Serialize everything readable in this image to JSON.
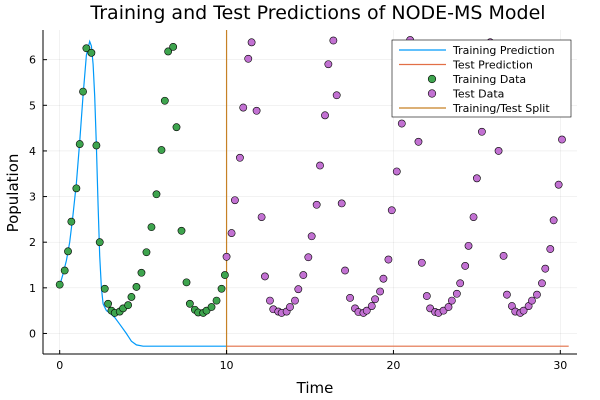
{
  "chart_data": {
    "type": "scatter",
    "title": "Training and Test Predictions of NODE-MS Model",
    "xlabel": "Time",
    "ylabel": "Population",
    "xlim": [
      -1,
      31
    ],
    "ylim": [
      -0.45,
      6.65
    ],
    "xticks": [
      0,
      10,
      20,
      30
    ],
    "yticks": [
      0,
      1,
      2,
      3,
      4,
      5,
      6
    ],
    "grid": true,
    "legend_position": "top-right",
    "split_x": 10,
    "colors": {
      "training_prediction": "#009AFA",
      "test_prediction": "#E26F46",
      "training_data": "#3EA44E",
      "test_data": "#C271D2",
      "split": "#C68125"
    },
    "series": [
      {
        "name": "Training Prediction",
        "kind": "line",
        "x": [
          0,
          0.2,
          0.4,
          0.6,
          0.8,
          1.0,
          1.2,
          1.4,
          1.6,
          1.8,
          1.9,
          2.0,
          2.1,
          2.2,
          2.3,
          2.4,
          2.5,
          2.6,
          2.8,
          3.0,
          3.3,
          3.6,
          4.0,
          4.3,
          4.6,
          5.0,
          5.5,
          6,
          7,
          8,
          9,
          10
        ],
        "y": [
          1.05,
          1.3,
          1.6,
          2.0,
          2.6,
          3.3,
          4.2,
          5.2,
          6.1,
          6.4,
          6.3,
          5.9,
          5.2,
          4.1,
          2.8,
          1.7,
          1.0,
          0.65,
          0.5,
          0.45,
          0.35,
          0.2,
          0.0,
          -0.17,
          -0.25,
          -0.28,
          -0.28,
          -0.28,
          -0.28,
          -0.28,
          -0.28,
          -0.28
        ]
      },
      {
        "name": "Test Prediction",
        "kind": "line",
        "x": [
          10,
          30.5
        ],
        "y": [
          -0.28,
          -0.28
        ]
      },
      {
        "name": "Training Data",
        "kind": "scatter",
        "x": [
          0,
          0.3,
          0.5,
          0.7,
          1.0,
          1.2,
          1.4,
          1.6,
          1.9,
          2.2,
          2.4,
          2.7,
          2.9,
          3.1,
          3.3,
          3.6,
          3.8,
          4.1,
          4.3,
          4.6,
          4.9,
          5.2,
          5.5,
          5.8,
          6.1,
          6.3,
          6.5,
          6.8,
          7.0,
          7.3,
          7.6,
          7.8,
          8.1,
          8.3,
          8.6,
          8.8,
          9.1,
          9.4,
          9.7,
          9.9
        ],
        "y": [
          1.07,
          1.38,
          1.8,
          2.45,
          3.18,
          4.15,
          5.3,
          6.25,
          6.15,
          4.12,
          2.0,
          0.98,
          0.65,
          0.5,
          0.45,
          0.48,
          0.55,
          0.62,
          0.8,
          1.02,
          1.33,
          1.78,
          2.33,
          3.05,
          4.02,
          5.1,
          6.18,
          6.28,
          4.52,
          2.25,
          1.12,
          0.65,
          0.52,
          0.46,
          0.45,
          0.5,
          0.58,
          0.72,
          0.98,
          1.28
        ]
      },
      {
        "name": "Test Data",
        "kind": "scatter",
        "x": [
          10.0,
          10.3,
          10.5,
          10.8,
          11.0,
          11.3,
          11.5,
          11.8,
          12.1,
          12.3,
          12.6,
          12.8,
          13.1,
          13.3,
          13.6,
          13.8,
          14.1,
          14.3,
          14.6,
          14.9,
          15.1,
          15.4,
          15.6,
          15.9,
          16.1,
          16.4,
          16.6,
          16.9,
          17.1,
          17.4,
          17.7,
          17.9,
          18.2,
          18.4,
          18.7,
          18.9,
          19.2,
          19.4,
          19.7,
          19.9,
          20.2,
          20.5,
          20.7,
          21.0,
          21.2,
          21.5,
          21.7,
          22.0,
          22.2,
          22.5,
          22.7,
          23.0,
          23.3,
          23.5,
          23.8,
          24.0,
          24.3,
          24.5,
          24.8,
          25.0,
          25.3,
          25.5,
          25.8,
          26.1,
          26.3,
          26.6,
          26.8,
          27.1,
          27.3,
          27.6,
          27.8,
          28.1,
          28.3,
          28.6,
          28.9,
          29.1,
          29.4,
          29.6,
          29.9,
          30.1,
          30.4
        ],
        "y": [
          1.68,
          2.2,
          2.92,
          3.85,
          4.95,
          6.02,
          6.38,
          4.88,
          2.55,
          1.25,
          0.72,
          0.53,
          0.48,
          0.45,
          0.48,
          0.58,
          0.72,
          0.97,
          1.28,
          1.67,
          2.13,
          2.82,
          3.68,
          4.78,
          5.9,
          6.42,
          5.22,
          2.85,
          1.38,
          0.78,
          0.55,
          0.47,
          0.45,
          0.5,
          0.6,
          0.75,
          0.92,
          1.2,
          1.62,
          2.7,
          3.55,
          4.6,
          5.98,
          6.43,
          6.25,
          4.2,
          1.55,
          0.82,
          0.55,
          0.47,
          0.45,
          0.5,
          0.58,
          0.72,
          0.87,
          1.1,
          1.48,
          1.92,
          2.55,
          3.4,
          4.42,
          5.55,
          6.38,
          6.28,
          4.0,
          1.7,
          0.85,
          0.6,
          0.48,
          0.45,
          0.5,
          0.6,
          0.72,
          0.85,
          1.1,
          1.42,
          1.85,
          2.48,
          3.26,
          4.25,
          6.32
        ]
      },
      {
        "name": "Training/Test Split",
        "kind": "vline",
        "x": [
          10
        ]
      }
    ]
  }
}
